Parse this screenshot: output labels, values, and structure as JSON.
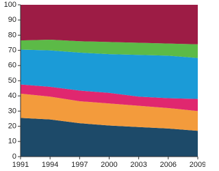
{
  "chart_data": {
    "type": "stacked-area",
    "x": [
      1991,
      1994,
      1997,
      2000,
      2003,
      2006,
      2009
    ],
    "series": [
      {
        "color": "#1d4a69",
        "values": [
          25.5,
          24.5,
          22,
          20.5,
          19.5,
          18.5,
          17
        ]
      },
      {
        "color": "#f39b3c",
        "values": [
          16,
          15,
          14.5,
          14.5,
          14,
          13.5,
          13
        ]
      },
      {
        "color": "#e0276f",
        "values": [
          6,
          6.5,
          7,
          7,
          6,
          6.5,
          8
        ]
      },
      {
        "color": "#1b9bd7",
        "values": [
          23,
          24,
          25,
          25.5,
          27.5,
          28,
          27
        ]
      },
      {
        "color": "#5cba47",
        "values": [
          6,
          7,
          7.5,
          8,
          8,
          8,
          9
        ]
      },
      {
        "color": "#9d1c45",
        "values": [
          23.5,
          23,
          24,
          24.5,
          25,
          25.5,
          26
        ]
      }
    ],
    "xlim": [
      1991,
      2009
    ],
    "xticks": [
      1991,
      1994,
      1997,
      2000,
      2003,
      2006,
      2009
    ],
    "ylim": [
      0,
      100
    ],
    "yticks": [
      0,
      10,
      20,
      30,
      40,
      50,
      60,
      70,
      80,
      90,
      100
    ],
    "grid": false
  }
}
